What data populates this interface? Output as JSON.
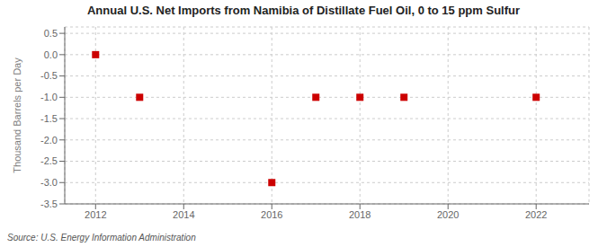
{
  "chart_data": {
    "type": "scatter",
    "title": "Annual U.S. Net Imports from Namibia of Distillate Fuel Oil, 0 to 15 ppm Sulfur",
    "ylabel": "Thousand Barrels per Day",
    "source": "Source: U.S. Energy Information Administration",
    "x": [
      2012,
      2013,
      2016,
      2017,
      2018,
      2019,
      2022
    ],
    "values": [
      0.0,
      -1.0,
      -3.0,
      -1.0,
      -1.0,
      -1.0,
      -1.0
    ],
    "color": "#cc0000",
    "marker": "square",
    "xlim": [
      2011.3,
      2023.2
    ],
    "ylim": [
      -3.5,
      0.65
    ],
    "xticks": [
      2012,
      2014,
      2016,
      2018,
      2020,
      2022
    ],
    "yticks": [
      0.5,
      {
        "value": 0,
        "label": "0.0"
      },
      -0.5,
      {
        "value": -1,
        "label": "-1.0"
      },
      -1.5,
      {
        "value": -2,
        "label": "-2.0"
      },
      -2.5,
      {
        "value": -3,
        "label": "-3.0"
      },
      -3.5
    ],
    "grid": true
  }
}
